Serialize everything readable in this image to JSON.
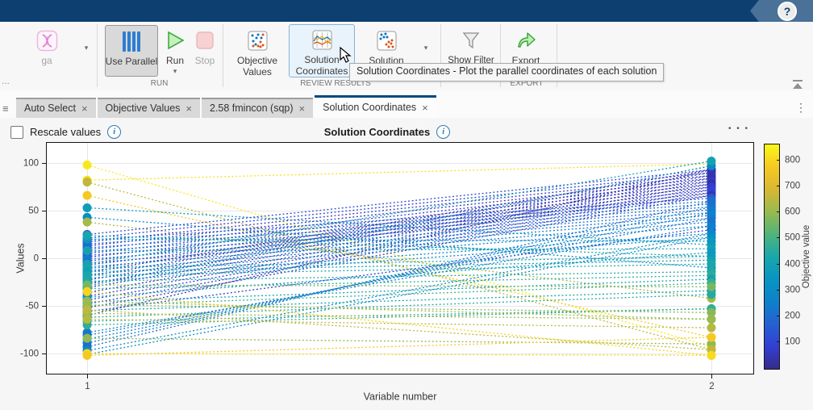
{
  "titlebar": {
    "help_glyph": "?"
  },
  "ribbon": {
    "solver": {
      "partial": "...",
      "ga": "ga",
      "dropdown_glyph": "▾"
    },
    "run_group": {
      "label": "RUN",
      "use_parallel": "Use Parallel",
      "run": "Run",
      "run_dropdown_glyph": "▾",
      "stop": "Stop"
    },
    "review_group": {
      "label": "REVIEW RESULTS",
      "objective_values_l1": "Objective",
      "objective_values_l2": "Values",
      "solution_coordinates_l1": "Solution",
      "solution_coordinates_l2": "Coordinates",
      "solution_l1": "Solution",
      "dropdown_glyph": "▾",
      "show_filter": "Show Filter"
    },
    "export_group": {
      "label": "EXPORT",
      "export": "Export"
    }
  },
  "tooltip": {
    "text": "Solution Coordinates - Plot the parallel coordinates of each solution"
  },
  "tabbar": {
    "hamburger_glyph": "≡",
    "menu_glyph": "⋮",
    "tabs": [
      {
        "label": "Auto Select",
        "close": "×"
      },
      {
        "label": "Objective Values",
        "close": "×"
      },
      {
        "label": "2.58 fmincon (sqp)",
        "close": "×"
      },
      {
        "label": "Solution Coordinates",
        "close": "×"
      }
    ]
  },
  "panel": {
    "rescale": "Rescale values",
    "info_glyph": "i",
    "title": "Solution Coordinates",
    "menu_glyph": "• • •"
  },
  "colors": {
    "titlebar": "#0d4070",
    "active_tab_accent": "#004a7f",
    "info_blue": "#2a7ab0",
    "run_green": "#43a943",
    "stop_pink": "#f7d2d2",
    "parallel_blue": "#2e7dd1"
  },
  "chart_data": {
    "type": "parallel-coordinates",
    "title": "Solution Coordinates",
    "xlabel": "Variable number",
    "ylabel": "Values",
    "xticks": [
      "1",
      "2"
    ],
    "yticks": [
      100,
      50,
      0,
      -50,
      -100
    ],
    "ylim": [
      -122,
      122
    ],
    "grid": true,
    "colormap": "parula",
    "line_style": "dotted",
    "colorbar": {
      "label": "Objective value",
      "ticks": [
        100,
        200,
        300,
        400,
        500,
        600,
        700,
        800
      ],
      "range": [
        0,
        862
      ]
    },
    "solutions": [
      [
        98,
        -93,
        830
      ],
      [
        82,
        99,
        815
      ],
      [
        80,
        -96,
        655
      ],
      [
        66,
        -83,
        772
      ],
      [
        53,
        14,
        382
      ],
      [
        43,
        -10,
        312
      ],
      [
        38,
        -42,
        622
      ],
      [
        25,
        93,
        120
      ],
      [
        21,
        90,
        95
      ],
      [
        17,
        87,
        75
      ],
      [
        13,
        84,
        55
      ],
      [
        9,
        81,
        88
      ],
      [
        5,
        78,
        70
      ],
      [
        1,
        75,
        48
      ],
      [
        -3,
        72,
        108
      ],
      [
        -7,
        69,
        38
      ],
      [
        -11,
        66,
        58
      ],
      [
        -15,
        93,
        30
      ],
      [
        -19,
        90,
        45
      ],
      [
        -23,
        87,
        62
      ],
      [
        -27,
        84,
        35
      ],
      [
        -31,
        81,
        66
      ],
      [
        -36,
        78,
        28
      ],
      [
        -40,
        75,
        78
      ],
      [
        -44,
        72,
        86
      ],
      [
        -48,
        69,
        96
      ],
      [
        -52,
        66,
        52
      ],
      [
        -56,
        30,
        92
      ],
      [
        -60,
        93,
        42
      ],
      [
        19,
        63,
        165
      ],
      [
        15,
        60,
        185
      ],
      [
        11,
        57,
        205
      ],
      [
        7,
        54,
        225
      ],
      [
        3,
        51,
        172
      ],
      [
        -1,
        48,
        242
      ],
      [
        -5,
        45,
        192
      ],
      [
        -9,
        42,
        262
      ],
      [
        -13,
        38,
        232
      ],
      [
        -17,
        34,
        252
      ],
      [
        -21,
        26,
        282
      ],
      [
        -25,
        22,
        302
      ],
      [
        -29,
        97,
        282
      ],
      [
        -78,
        34,
        252
      ],
      [
        -81,
        42,
        222
      ],
      [
        -85,
        48,
        262
      ],
      [
        -89,
        54,
        242
      ],
      [
        -93,
        60,
        212
      ],
      [
        -97,
        26,
        292
      ],
      [
        -101,
        22,
        312
      ],
      [
        -6,
        102,
        400
      ],
      [
        20,
        18,
        352
      ],
      [
        8,
        10,
        402
      ],
      [
        24,
        2,
        422
      ],
      [
        -10,
        2,
        422
      ],
      [
        -14,
        -2,
        392
      ],
      [
        -18,
        -6,
        432
      ],
      [
        -24,
        -14,
        442
      ],
      [
        -32,
        -18,
        462
      ],
      [
        -41,
        6,
        362
      ],
      [
        -46,
        -22,
        402
      ],
      [
        -50,
        -26,
        482
      ],
      [
        -55,
        -34,
        422
      ],
      [
        -62,
        -38,
        452
      ],
      [
        -66,
        -53,
        472
      ],
      [
        -70,
        -53,
        472
      ],
      [
        -28,
        -30,
        562
      ],
      [
        -49,
        -57,
        582
      ],
      [
        -58,
        -64,
        602
      ],
      [
        -64,
        -73,
        642
      ],
      [
        -84,
        -90,
        592
      ],
      [
        -45,
        -64,
        602
      ],
      [
        -54,
        -96,
        655
      ],
      [
        -35,
        -102,
        795
      ],
      [
        -100,
        -102,
        805
      ],
      [
        -102,
        -83,
        772
      ]
    ]
  }
}
